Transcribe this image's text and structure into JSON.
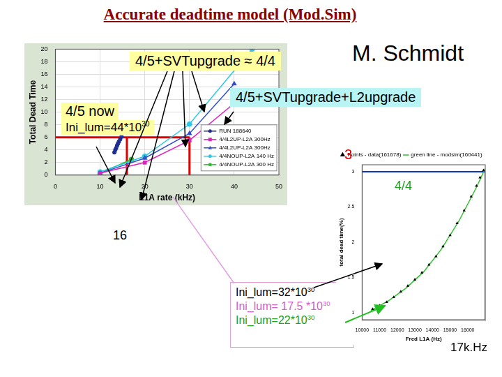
{
  "slide": {
    "title": "Accurate deadtime model (Mod.Sim)",
    "author": "M. Schmidt",
    "annotations": [
      {
        "text": "4/5+SVTupgrade ≈ 4/4"
      },
      {
        "text": "4/5+SVTupgrade+L2upgrade"
      },
      {
        "text": "4/5 now"
      },
      {
        "text": "Ini_lum=44*10",
        "sup": "30"
      },
      {
        "text": "16"
      },
      {
        "text": "3"
      },
      {
        "text": "4/4"
      },
      {
        "text": "17k.Hz"
      },
      {
        "text": "Ini_lum=32*10",
        "sup": "30"
      },
      {
        "text": "Ini_lum= 17.5 *10",
        "sup": "30"
      },
      {
        "text": "Ini_lum=22*10",
        "sup": "30"
      }
    ]
  },
  "chart_data": [
    {
      "type": "scatter",
      "x_label": "L1A rate (kHz)",
      "y_label": "Total Dead Time",
      "xlim": [
        0,
        50
      ],
      "xticks": [
        0,
        10,
        20,
        30,
        40,
        50
      ],
      "ylim": [
        0,
        20
      ],
      "yticks": [
        0,
        2,
        4,
        6,
        8,
        10,
        12,
        14,
        16,
        18,
        20
      ],
      "grid": true,
      "legend": "right",
      "series": [
        {
          "name": "RUN 188640",
          "color": "#1f2f8f",
          "marker": "circle",
          "type": "scatter",
          "x": [
            13.2,
            13.4,
            13.6,
            13.8,
            14.0,
            14.2,
            14.5,
            14.8
          ],
          "values": [
            3.6,
            4.0,
            4.3,
            4.7,
            5.0,
            5.3,
            5.7,
            6.1
          ]
        },
        {
          "name": "4/4L2UP-L2A 300Hz",
          "color": "#e020c0",
          "marker": "square",
          "type": "line",
          "x": [
            10,
            20,
            30,
            40
          ],
          "values": [
            0.3,
            2.0,
            5.5,
            11.4
          ]
        },
        {
          "name": "4/4L2UP-L2A 300Hz",
          "color": "#3050d0",
          "marker": "triangle",
          "type": "line",
          "x": [
            10,
            20,
            30,
            40
          ],
          "values": [
            0.3,
            2.7,
            6.6,
            14.5
          ]
        },
        {
          "name": "4/4NOUP-L2A 140 Hz",
          "color": "#30c8e8",
          "marker": "circle",
          "type": "line",
          "x": [
            10,
            20,
            30,
            44
          ],
          "values": [
            0.5,
            3.0,
            8.1,
            20
          ]
        },
        {
          "name": "4/4NOUP-L2A 300 Hz",
          "color": "#30c030",
          "marker": "circle",
          "type": "line",
          "x": [
            10,
            17
          ],
          "values": [
            0.3,
            2.5
          ]
        }
      ],
      "reference_lines": [
        {
          "color": "#e00000",
          "x": [
            0,
            30
          ],
          "values": [
            6,
            6
          ]
        },
        {
          "color": "#e00000",
          "x": [
            16,
            16
          ],
          "values": [
            0,
            6
          ]
        },
        {
          "color": "#e00000",
          "x": [
            30,
            30
          ],
          "values": [
            0,
            6
          ]
        }
      ]
    },
    {
      "type": "scatter",
      "x_label": "Fred L1A (Hz)",
      "y_label": "total dead time(%)",
      "xlim": [
        10000,
        17000
      ],
      "xticks": [
        10000,
        11000,
        12000,
        13000,
        14000,
        15000,
        16000
      ],
      "ylim": [
        0.9,
        3.1
      ],
      "yticks": [
        1,
        1.5,
        2,
        2.5,
        3
      ],
      "grid": false,
      "legend": "top",
      "series": [
        {
          "name": "Points - data(161678)",
          "color": "#000000",
          "marker": "triangle",
          "type": "scatter",
          "x": [
            10600,
            11000,
            11400,
            11800,
            12200,
            12600,
            13000,
            13400,
            13800,
            14200,
            14600,
            15000,
            15400,
            15800,
            16200,
            16500,
            16700,
            16900
          ],
          "values": [
            1.05,
            1.1,
            1.15,
            1.22,
            1.3,
            1.38,
            1.47,
            1.57,
            1.68,
            1.8,
            1.94,
            2.1,
            2.27,
            2.45,
            2.65,
            2.8,
            2.92,
            3.02
          ]
        },
        {
          "name": "green line - modsim(160441)",
          "color": "#30c030",
          "marker": "none",
          "type": "line",
          "x": [
            10500,
            11500,
            12500,
            13500,
            14500,
            15500,
            16500,
            17000
          ],
          "values": [
            1.03,
            1.17,
            1.35,
            1.58,
            1.9,
            2.3,
            2.78,
            3.05
          ]
        }
      ],
      "reference_lines": [
        {
          "color": "#1030d0",
          "x": [
            10000,
            17000
          ],
          "values": [
            3,
            3
          ]
        },
        {
          "color": "#1030d0",
          "x": [
            17000,
            17000
          ],
          "values": [
            0.9,
            3
          ]
        }
      ]
    }
  ]
}
